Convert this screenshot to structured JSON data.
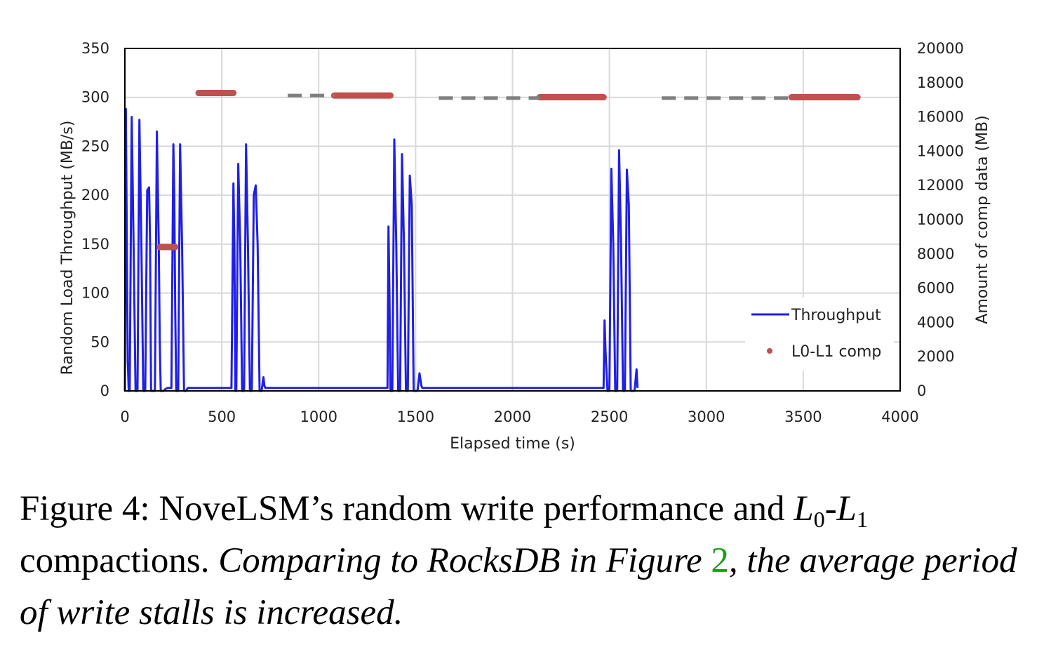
{
  "chart_data": {
    "type": "line",
    "xlabel": "Elapsed time (s)",
    "ylabel": "Random Load Throughput (MB/s)",
    "y2label": "Amount of comp data (MB)",
    "xlim": [
      0,
      4000
    ],
    "ylim": [
      0,
      350
    ],
    "y2lim": [
      0,
      20000
    ],
    "xticks": [
      "0",
      "500",
      "1000",
      "1500",
      "2000",
      "2500",
      "3000",
      "3500",
      "4000"
    ],
    "yticks": [
      "0",
      "50",
      "100",
      "150",
      "200",
      "250",
      "300",
      "350"
    ],
    "y2ticks": [
      "0",
      "2000",
      "4000",
      "6000",
      "8000",
      "10000",
      "12000",
      "14000",
      "16000",
      "18000",
      "20000"
    ],
    "grid": true,
    "legend_position": "bottom-right",
    "colors": {
      "throughput": "#1f1fe8",
      "l0l1": "#c0504d",
      "dashed": "#7f7f7f"
    },
    "series": [
      {
        "name": "Throughput",
        "axis": "left",
        "x": [
          0,
          5,
          10,
          15,
          20,
          25,
          35,
          45,
          55,
          65,
          75,
          85,
          95,
          105,
          115,
          125,
          130,
          135,
          140,
          145,
          155,
          165,
          175,
          180,
          185,
          190,
          200,
          210,
          220,
          230,
          240,
          250,
          255,
          260,
          265,
          275,
          285,
          295,
          305,
          315,
          325,
          335,
          345,
          350,
          400,
          450,
          500,
          550,
          560,
          565,
          570,
          575,
          585,
          595,
          605,
          615,
          625,
          635,
          645,
          655,
          665,
          675,
          685,
          695,
          705,
          715,
          720,
          725,
          735,
          740,
          800,
          900,
          1000,
          1100,
          1200,
          1300,
          1350,
          1355,
          1360,
          1365,
          1370,
          1380,
          1390,
          1400,
          1410,
          1420,
          1430,
          1440,
          1450,
          1460,
          1470,
          1480,
          1490,
          1500,
          1510,
          1520,
          1530,
          1535,
          1540,
          1600,
          1800,
          2000,
          2200,
          2400,
          2460,
          2465,
          2470,
          2475,
          2480,
          2490,
          2500,
          2510,
          2520,
          2530,
          2540,
          2550,
          2560,
          2570,
          2580,
          2590,
          2600,
          2610,
          2620,
          2630,
          2640,
          2645
        ],
        "y": [
          0,
          288,
          150,
          30,
          0,
          0,
          280,
          150,
          0,
          0,
          277,
          150,
          0,
          0,
          205,
          208,
          150,
          0,
          0,
          0,
          0,
          265,
          150,
          50,
          0,
          0,
          0,
          2,
          3,
          3,
          3,
          252,
          200,
          80,
          0,
          0,
          252,
          150,
          0,
          0,
          3,
          3,
          3,
          3,
          3,
          3,
          3,
          3,
          212,
          150,
          0,
          0,
          232,
          150,
          0,
          0,
          252,
          150,
          0,
          0,
          200,
          210,
          150,
          0,
          0,
          14,
          5,
          3,
          3,
          3,
          3,
          3,
          3,
          3,
          3,
          3,
          3,
          3,
          168,
          100,
          0,
          0,
          257,
          150,
          0,
          0,
          242,
          150,
          0,
          0,
          220,
          190,
          0,
          0,
          0,
          18,
          5,
          3,
          3,
          3,
          3,
          3,
          3,
          3,
          3,
          3,
          3,
          72,
          40,
          0,
          0,
          227,
          150,
          0,
          0,
          246,
          150,
          0,
          0,
          226,
          190,
          0,
          0,
          0,
          22,
          3
        ],
        "mode": "line"
      },
      {
        "name": "L0-L1 comp",
        "axis": "right",
        "mode": "segments",
        "segments": [
          {
            "x0": 180,
            "x1": 260,
            "y": 8400
          },
          {
            "x0": 380,
            "x1": 560,
            "y": 17400
          },
          {
            "x0": 1080,
            "x1": 1370,
            "y": 17250
          },
          {
            "x0": 2140,
            "x1": 2470,
            "y": 17150
          },
          {
            "x0": 3440,
            "x1": 3780,
            "y": 17150
          }
        ]
      },
      {
        "axis": "right",
        "mode": "dashed-segments",
        "segments": [
          {
            "x0": 840,
            "x1": 1080,
            "y": 17250
          },
          {
            "x0": 1620,
            "x1": 2140,
            "y": 17100
          },
          {
            "x0": 2770,
            "x1": 3440,
            "y": 17100
          }
        ]
      }
    ]
  },
  "caption": {
    "label": "Figure 4:",
    "text_main": "NoveLSM’s random write performance and",
    "math_L": "L",
    "sub_0": "0",
    "dash": "-",
    "sub_1": "1",
    "text_compactions": "compactions.",
    "italic_pre": "Comparing to RocksDB in Figure",
    "ref_number": "2",
    "italic_post": ", the average period of write stalls is increased."
  }
}
